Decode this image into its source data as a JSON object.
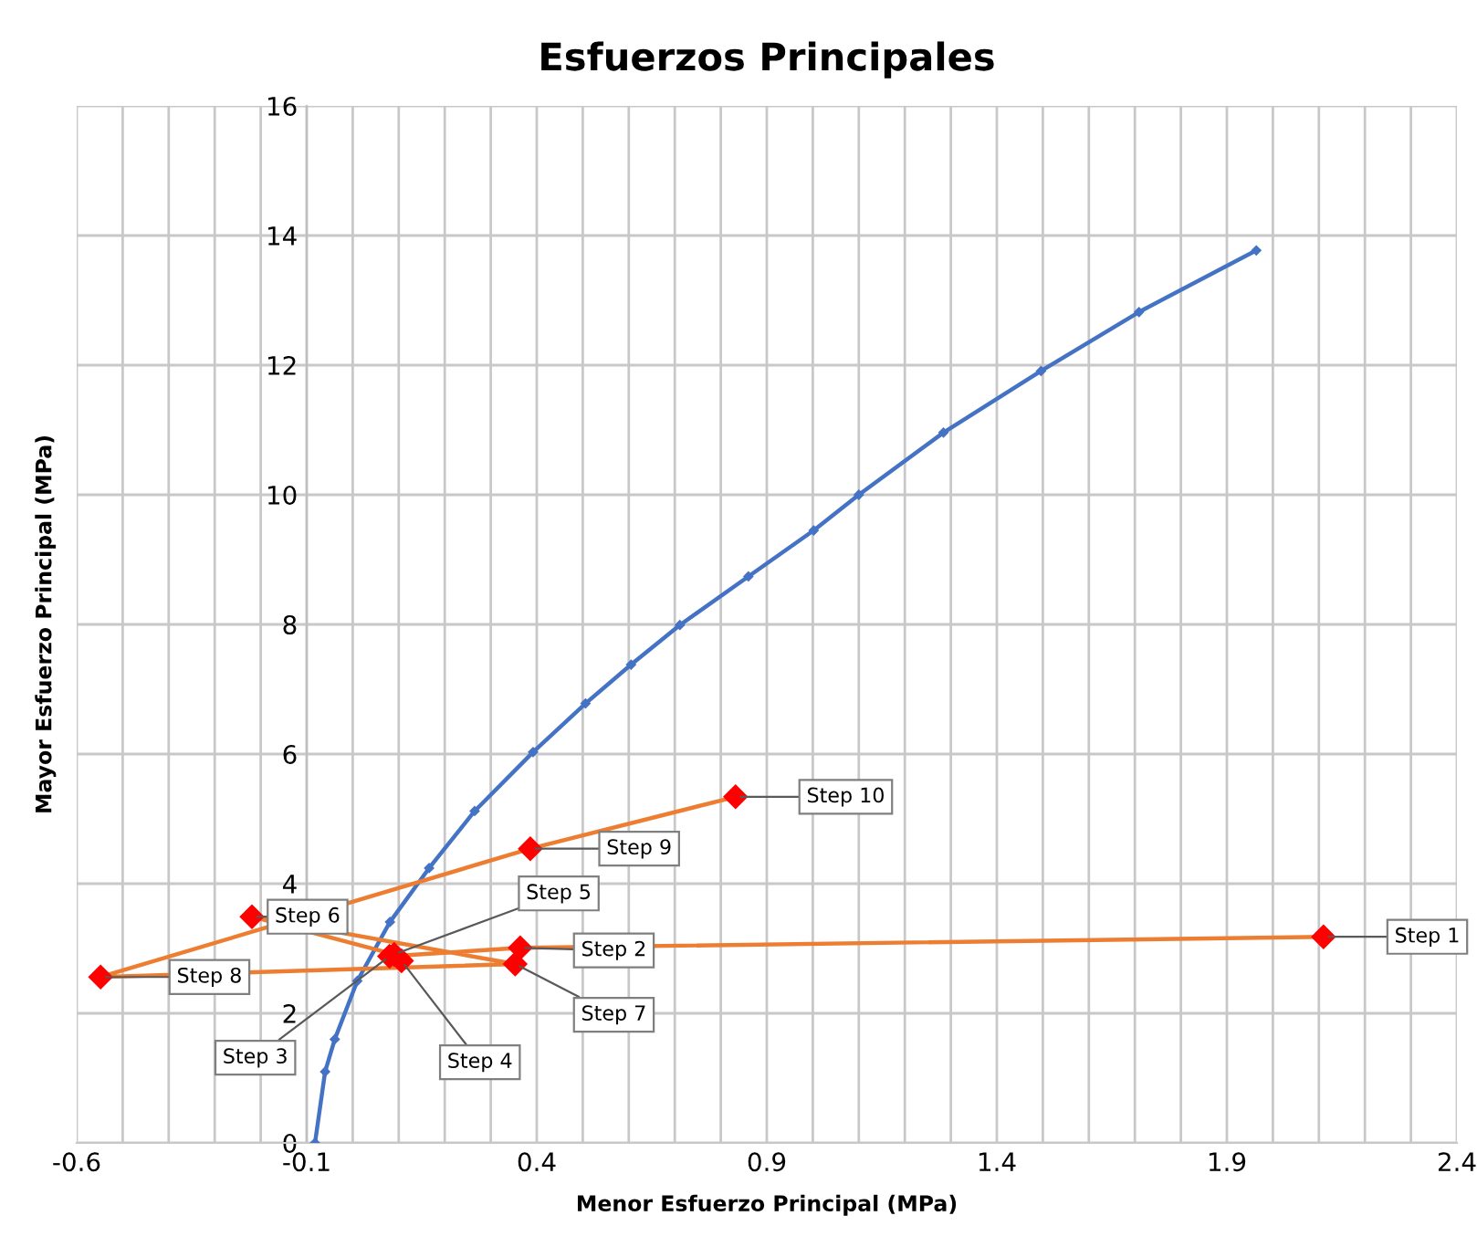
{
  "chart_data": {
    "type": "line",
    "title": "Esfuerzos Principales",
    "xlabel": "Menor Esfuerzo Principal (MPa)",
    "ylabel": "Mayor Esfuerzo Principal (MPa)",
    "series": [
      {
        "color": "#4472c4",
        "marker": "diamond",
        "x": [
          -0.082,
          -0.06,
          -0.039,
          0.01,
          0.081,
          0.166,
          0.265,
          0.392,
          0.506,
          0.605,
          0.711,
          0.86,
          1.002,
          1.1,
          1.284,
          1.496,
          1.709,
          1.964
        ],
        "values": [
          0,
          1.1,
          1.6,
          2.5,
          3.41,
          4.24,
          5.12,
          6.03,
          6.78,
          7.38,
          7.99,
          8.74,
          9.45,
          10.0,
          10.96,
          11.91,
          12.82,
          13.77
        ]
      },
      {
        "color": "#ed7d31",
        "marker": "diamond",
        "colors": [
          "#ff0000",
          "#ff0000",
          "#ff0000",
          "#ff0000",
          "#ff0000",
          "#ff0000",
          "#ff0000",
          "#ff0000",
          "#ff0000",
          "#ff0000"
        ],
        "x": [
          2.11,
          0.364,
          0.08,
          0.106,
          0.09,
          -0.219,
          0.353,
          -0.548,
          0.386,
          0.832
        ],
        "values": [
          3.18,
          3.01,
          2.88,
          2.81,
          2.91,
          3.49,
          2.76,
          2.56,
          4.54,
          5.34
        ]
      }
    ],
    "annotations": [
      {
        "text": "Step 1",
        "x": 2.11,
        "y": 3.18
      },
      {
        "text": "Step 2",
        "x": 0.364,
        "y": 3.01
      },
      {
        "text": "Step 3",
        "x": 0.08,
        "y": 2.88
      },
      {
        "text": "Step 4",
        "x": 0.106,
        "y": 2.81
      },
      {
        "text": "Step 5",
        "x": 0.09,
        "y": 2.91
      },
      {
        "text": "Step 6",
        "x": -0.219,
        "y": 3.49
      },
      {
        "text": "Step 7",
        "x": 0.353,
        "y": 2.76
      },
      {
        "text": "Step 8",
        "x": -0.548,
        "y": 2.56
      },
      {
        "text": "Step 9",
        "x": 0.386,
        "y": 4.54
      },
      {
        "text": "Step 10",
        "x": 0.832,
        "y": 5.34
      }
    ],
    "xlim": [
      -0.6,
      2.4
    ],
    "ylim": [
      0,
      16
    ],
    "xticks": [
      -0.6,
      {
        "value": -0.5,
        "label": null
      },
      {
        "value": -0.4,
        "label": null
      },
      {
        "value": -0.3,
        "label": null
      },
      {
        "value": -0.2,
        "label": null
      },
      -0.1,
      {
        "value": 0.0,
        "label": null
      },
      {
        "value": 0.1,
        "label": null
      },
      {
        "value": 0.2,
        "label": null
      },
      {
        "value": 0.3,
        "label": null
      },
      0.4,
      {
        "value": 0.5,
        "label": null
      },
      {
        "value": 0.6,
        "label": null
      },
      {
        "value": 0.7,
        "label": null
      },
      {
        "value": 0.8,
        "label": null
      },
      0.9,
      {
        "value": 1.0,
        "label": null
      },
      {
        "value": 1.1,
        "label": null
      },
      {
        "value": 1.2,
        "label": null
      },
      {
        "value": 1.3,
        "label": null
      },
      1.4,
      {
        "value": 1.5,
        "label": null
      },
      {
        "value": 1.6,
        "label": null
      },
      {
        "value": 1.7,
        "label": null
      },
      {
        "value": 1.8,
        "label": null
      },
      1.9,
      {
        "value": 2.0,
        "label": null
      },
      {
        "value": 2.1,
        "label": null
      },
      {
        "value": 2.2,
        "label": null
      },
      {
        "value": 2.3,
        "label": null
      },
      2.4
    ],
    "yticks": [
      0,
      2,
      4,
      6,
      8,
      10,
      12,
      14,
      16
    ],
    "grid": true,
    "legend": false
  }
}
